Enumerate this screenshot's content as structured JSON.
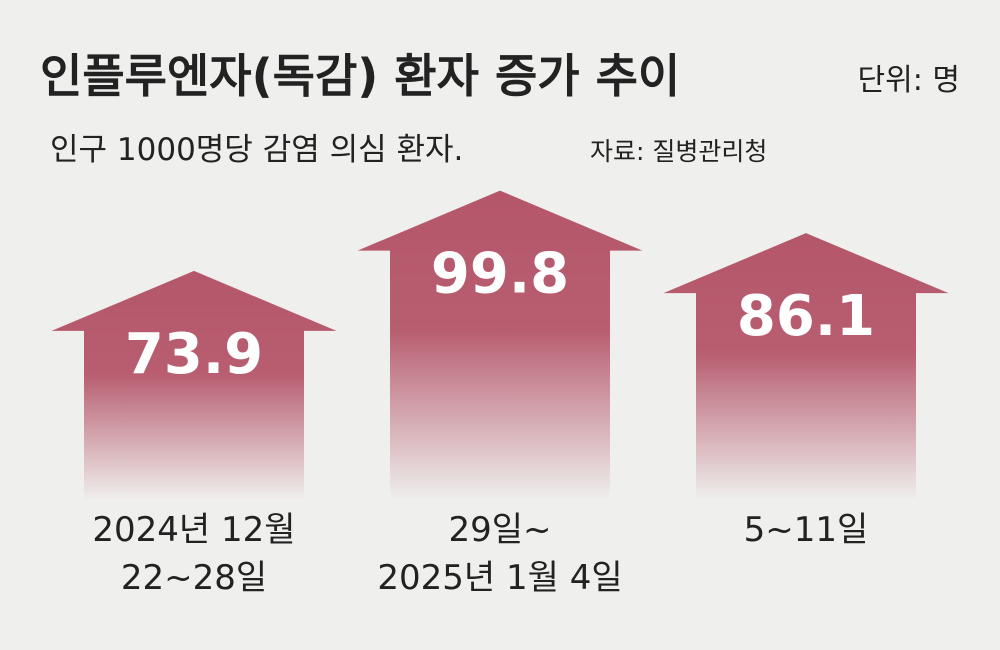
{
  "chart_data": {
    "type": "bar",
    "title": "인플루엔자(독감) 환자 증가 추이",
    "unit": "단위: 명",
    "subtitle": "인구 1000명당 감염 의심 환자.",
    "source": "자료: 질병관리청",
    "categories": [
      "2024년 12월\n22~28일",
      "29일~\n2025년 1월 4일",
      "5~11일"
    ],
    "values": [
      73.9,
      99.8,
      86.1
    ],
    "color": "#b5566a"
  }
}
